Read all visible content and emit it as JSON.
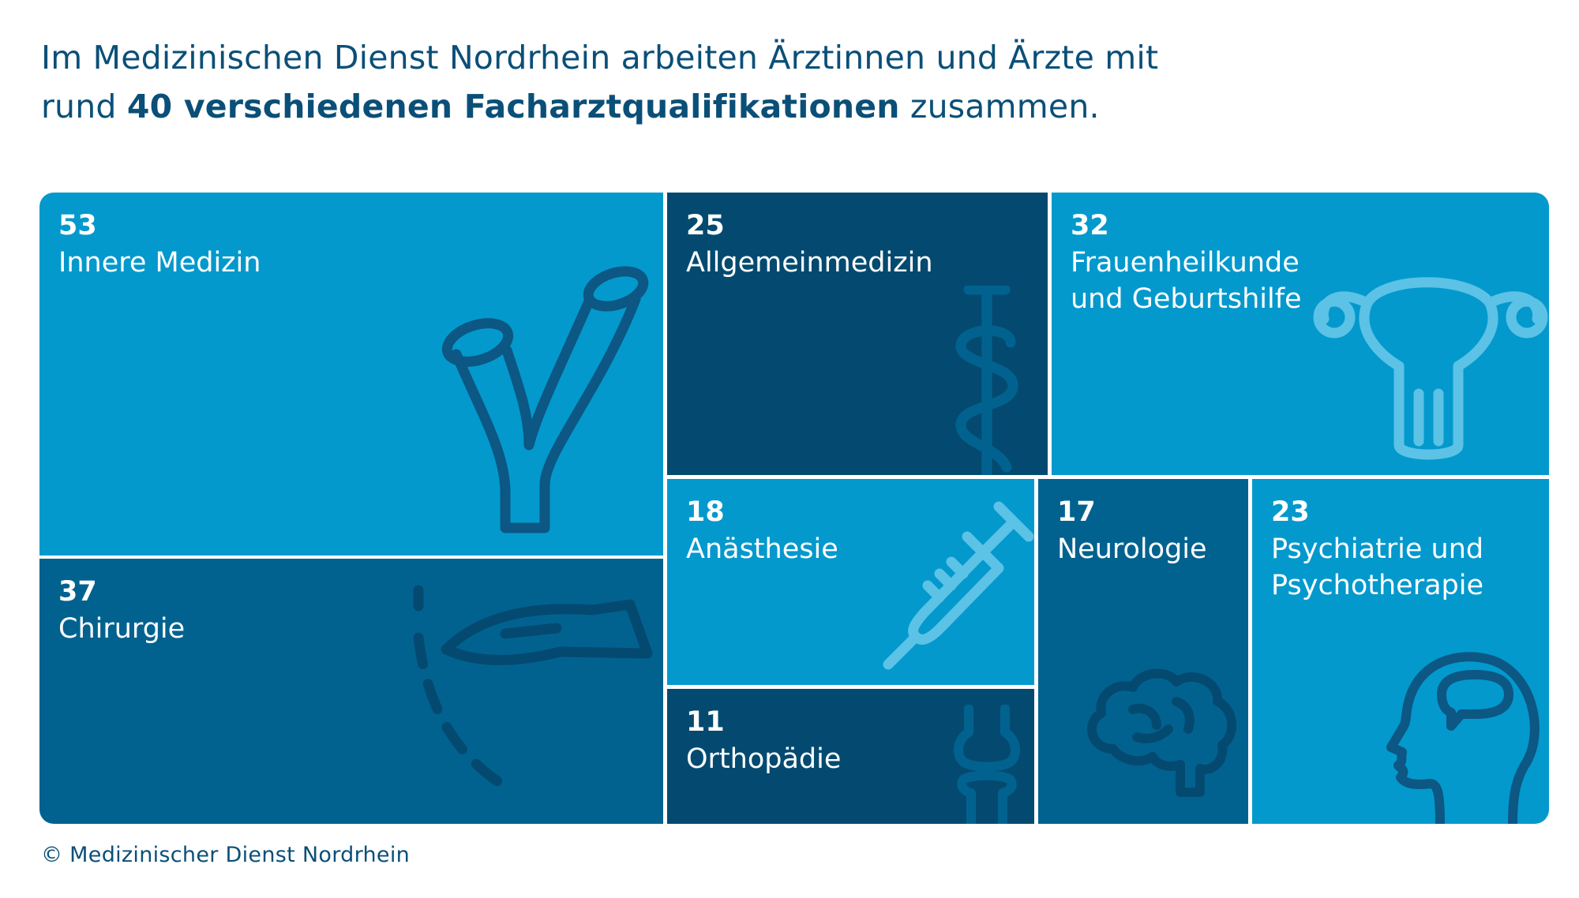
{
  "headline": {
    "line1": "Im Medizinischen Dienst Nordrhein arbeiten Ärztinnen und Ärzte mit",
    "line2_pre": "rund ",
    "line2_bold": "40 verschiedenen Facharztqualifikationen",
    "line2_post": " zusammen."
  },
  "colors": {
    "light": "#0399cd",
    "medium": "#02628f",
    "dark": "#044a70",
    "text": "#0a4f78",
    "icon_light": "#5cc2e6",
    "icon_on_light": "#0c5783",
    "icon_on_dark": "#0e7aae"
  },
  "chart_data": {
    "type": "treemap",
    "tiles": [
      {
        "name": "Innere Medizin",
        "label_lines": [
          "Innere Medizin"
        ],
        "value": 53,
        "icon": "bronchi-icon"
      },
      {
        "name": "Chirurgie",
        "label_lines": [
          "Chirurgie"
        ],
        "value": 37,
        "icon": "scalpel-icon"
      },
      {
        "name": "Allgemeinmedizin",
        "label_lines": [
          "Allgemeinmedizin"
        ],
        "value": 25,
        "icon": "staff-of-asclepius-icon"
      },
      {
        "name": "Frauenheilkunde und Geburtshilfe",
        "label_lines": [
          "Frauenheilkunde",
          "und Geburtshilfe"
        ],
        "value": 32,
        "icon": "uterus-icon"
      },
      {
        "name": "Anästhesie",
        "label_lines": [
          "Anästhesie"
        ],
        "value": 18,
        "icon": "syringe-icon"
      },
      {
        "name": "Orthopädie",
        "label_lines": [
          "Orthopädie"
        ],
        "value": 11,
        "icon": "knee-joint-icon"
      },
      {
        "name": "Neurologie",
        "label_lines": [
          "Neurologie"
        ],
        "value": 17,
        "icon": "brain-icon"
      },
      {
        "name": "Psychiatrie und Psychotherapie",
        "label_lines": [
          "Psychiatrie und",
          "Psychotherapie"
        ],
        "value": 23,
        "icon": "head-speech-bubble-icon"
      }
    ]
  },
  "footer": "© Medizinischer Dienst Nordrhein"
}
